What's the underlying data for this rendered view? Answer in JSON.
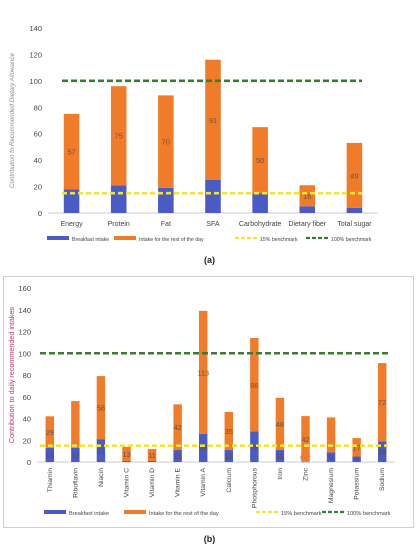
{
  "chart_data": [
    {
      "panel": "(a)",
      "type": "bar",
      "stacked": true,
      "ylabel": "Contribution to Recommended Dietary Allowance",
      "ylim": [
        0,
        140
      ],
      "yticks": [
        0,
        20,
        40,
        60,
        80,
        100,
        120,
        140
      ],
      "categories": [
        "Energy",
        "Protein",
        "Fat",
        "SFA",
        "Carbohydrate",
        "Dietary fiber",
        "Total sugar"
      ],
      "series": [
        {
          "name": "Breakfast intake",
          "type": "bar",
          "color": "#4a5bc4",
          "values": [
            18,
            21,
            19,
            25,
            15,
            5,
            4
          ],
          "data_labels": [
            "",
            "",
            "",
            "",
            "",
            "",
            ""
          ]
        },
        {
          "name": "Intake for the rest of the day",
          "type": "bar",
          "color": "#f07c2a",
          "values": [
            57,
            75,
            70,
            91,
            50,
            16,
            49
          ],
          "data_labels": [
            "57",
            "75",
            "70",
            "91",
            "50",
            "16",
            "49"
          ]
        },
        {
          "name": "15% benchmark",
          "type": "line",
          "color": "#f2e23a",
          "value": 15
        },
        {
          "name": "100% benchmark",
          "type": "line",
          "color": "#3a7a34",
          "value": 100
        }
      ],
      "legend_position": "bottom",
      "grid": false
    },
    {
      "panel": "(b)",
      "type": "bar",
      "stacked": true,
      "ylabel": "Contribution to daily recommended intakes",
      "ylim": [
        0,
        160
      ],
      "yticks": [
        0,
        20,
        40,
        60,
        80,
        100,
        120,
        140,
        160
      ],
      "categories": [
        "Thiamin",
        "Riboflavin",
        "Niacin",
        "Vitamin C",
        "Vitamin D",
        "Vitamin E",
        "Vitamin A",
        "Calcium",
        "Phosphorous",
        "Iron",
        "Zinc",
        "Magnesium",
        "Potassium",
        "Sodium"
      ],
      "series": [
        {
          "name": "Breakfast intake",
          "type": "bar",
          "color": "#4a5bc4",
          "values": [
            13,
            13,
            21,
            1,
            1,
            11,
            26,
            11,
            28,
            11,
            0.2,
            9,
            5,
            19
          ],
          "data_labels": [
            "13",
            "13",
            "21",
            "1",
            "1",
            "11",
            "26",
            "11",
            "28",
            "11",
            "0.2",
            "9",
            "5",
            "19"
          ]
        },
        {
          "name": "Intake for the rest of the day",
          "type": "bar",
          "color": "#f07c2a",
          "values": [
            29,
            43,
            58,
            13,
            11,
            42,
            113,
            35,
            86,
            48,
            42,
            32,
            17,
            72
          ],
          "data_labels": [
            "29",
            "",
            "58",
            "13",
            "11",
            "42",
            "113",
            "35",
            "86",
            "48",
            "42",
            "",
            "17",
            "72"
          ]
        },
        {
          "name": "15% benchmark",
          "type": "line",
          "color": "#f2e23a",
          "value": 15
        },
        {
          "name": "100% benchmark",
          "type": "line",
          "color": "#3a7a34",
          "value": 100
        }
      ],
      "legend_position": "bottom",
      "grid": false
    }
  ],
  "captions": {
    "a": "(a)",
    "b": "(b)"
  }
}
